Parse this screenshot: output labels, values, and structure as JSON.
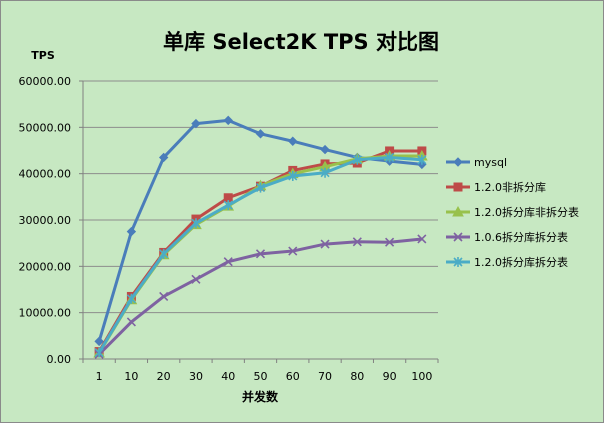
{
  "chart_data": {
    "type": "line",
    "title": "单库 Select2K TPS 对比图",
    "ylabel": "TPS",
    "xlabel": "并发数",
    "categories": [
      "1",
      "10",
      "20",
      "30",
      "40",
      "50",
      "60",
      "70",
      "80",
      "90",
      "100"
    ],
    "ylim": [
      0,
      60000
    ],
    "yticks": [
      0,
      10000,
      20000,
      30000,
      40000,
      50000,
      60000
    ],
    "ytick_labels": [
      "0.00",
      "10000.00",
      "20000.00",
      "30000.00",
      "40000.00",
      "50000.00",
      "60000.00"
    ],
    "grid": "horizontal",
    "legend": "right",
    "series": [
      {
        "name": "mysql",
        "color": "#4a7dba",
        "marker": "diamond",
        "values": [
          3800,
          27500,
          43500,
          50800,
          51500,
          48600,
          47000,
          45200,
          43500,
          42700,
          42000
        ]
      },
      {
        "name": "1.2.0非拆分库",
        "color": "#be4b48",
        "marker": "square",
        "values": [
          1600,
          13500,
          23000,
          30200,
          34800,
          37300,
          40700,
          42100,
          42300,
          44900,
          44900
        ]
      },
      {
        "name": "1.2.0拆分库非拆分表",
        "color": "#98c14c",
        "marker": "triangle",
        "values": [
          1300,
          12800,
          22500,
          29000,
          33000,
          37400,
          40000,
          41500,
          43200,
          43800,
          43800
        ]
      },
      {
        "name": "1.0.6拆分库拆分表",
        "color": "#7e62a1",
        "marker": "x",
        "values": [
          1000,
          8000,
          13500,
          17200,
          21000,
          22700,
          23300,
          24800,
          25300,
          25200,
          25900
        ]
      },
      {
        "name": "1.2.0拆分库拆分表",
        "color": "#4bacc6",
        "marker": "star",
        "values": [
          1400,
          13000,
          22700,
          29300,
          33200,
          37000,
          39500,
          40200,
          43000,
          43500,
          43000
        ]
      }
    ]
  }
}
